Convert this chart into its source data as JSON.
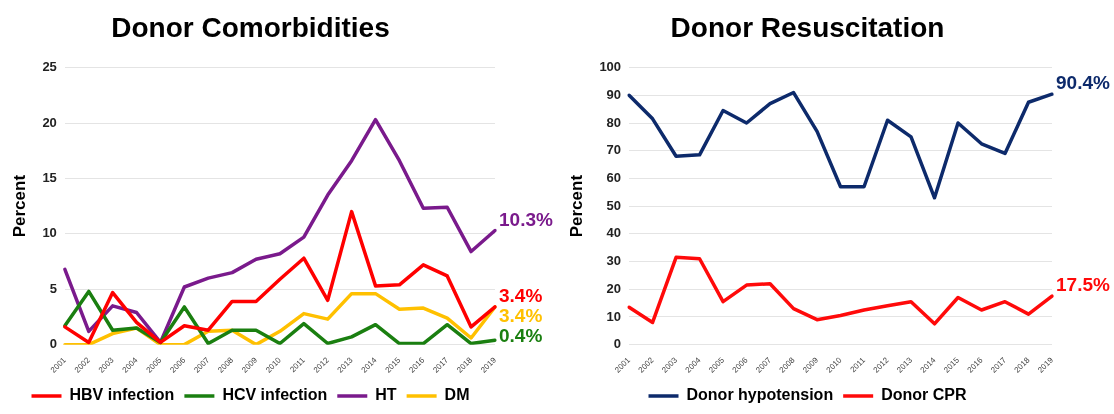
{
  "chart_data": [
    {
      "type": "line",
      "title": "Donor Comorbidities",
      "ylabel": "Percent",
      "categories": [
        "2001",
        "2002",
        "2003",
        "2004",
        "2005",
        "2006",
        "2007",
        "2008",
        "2009",
        "2010",
        "2011",
        "2012",
        "2013",
        "2014",
        "2015",
        "2016",
        "2017",
        "2018",
        "2019"
      ],
      "series": [
        {
          "name": "HBV infection",
          "color": "#ff0000",
          "values": [
            1.6,
            0.2,
            4.7,
            2.0,
            0.2,
            1.7,
            1.3,
            3.9,
            3.9,
            5.9,
            7.8,
            4.0,
            12.0,
            5.3,
            5.4,
            7.2,
            6.2,
            1.6,
            3.4
          ]
        },
        {
          "name": "HCV infection",
          "color": "#1a7f10",
          "values": [
            1.7,
            4.8,
            1.3,
            1.5,
            0.2,
            3.4,
            0.1,
            1.3,
            1.3,
            0.1,
            1.9,
            0.1,
            0.7,
            1.8,
            0.1,
            0.1,
            1.8,
            0.1,
            0.4
          ]
        },
        {
          "name": "HT",
          "color": "#7a1a8c",
          "values": [
            6.8,
            1.2,
            3.5,
            2.9,
            0.2,
            5.2,
            6.0,
            6.5,
            7.7,
            8.2,
            9.7,
            13.5,
            16.6,
            20.3,
            16.6,
            12.3,
            12.4,
            8.4,
            10.3
          ]
        },
        {
          "name": "DM",
          "color": "#ffc000",
          "values": [
            0,
            0,
            1.0,
            1.5,
            0,
            0,
            1.2,
            1.3,
            0,
            1.2,
            2.8,
            2.3,
            4.6,
            4.6,
            3.2,
            3.3,
            2.4,
            0.6,
            3.4
          ]
        }
      ],
      "ylim": [
        0,
        25
      ],
      "yticks": [
        0,
        5,
        10,
        15,
        20,
        25
      ],
      "grid": "y",
      "legend": "bottom",
      "marker": "none",
      "line_style": "solid",
      "annotations": [
        {
          "text": "10.3%",
          "x": "2019",
          "y": 10.3
        },
        {
          "text": "3.4%",
          "x": "2019",
          "y": 3.4
        },
        {
          "text": "3.4%",
          "x": "2019",
          "y": 3.4
        },
        {
          "text": "0.4%",
          "x": "2019",
          "y": 0.4
        }
      ]
    },
    {
      "type": "line",
      "title": "Donor Resuscitation",
      "ylabel": "Percent",
      "categories": [
        "2001",
        "2002",
        "2003",
        "2004",
        "2005",
        "2006",
        "2007",
        "2008",
        "2009",
        "2010",
        "2011",
        "2012",
        "2013",
        "2014",
        "2015",
        "2016",
        "2017",
        "2018",
        "2019"
      ],
      "series": [
        {
          "name": "Donor hypotension",
          "color": "#0d2a6b",
          "values": [
            90,
            81.5,
            68,
            68.5,
            84.5,
            80,
            87,
            91,
            77,
            57,
            57,
            81,
            75,
            53,
            80,
            72.5,
            69,
            87.5,
            90.4
          ]
        },
        {
          "name": "Donor CPR",
          "color": "#ff0a0a",
          "values": [
            13.5,
            8,
            31.5,
            31,
            15.5,
            21.5,
            22,
            13,
            9,
            10.5,
            12.5,
            14,
            15.5,
            7.5,
            17,
            12.5,
            15.5,
            11,
            17.5
          ]
        }
      ],
      "ylim": [
        0,
        100
      ],
      "yticks": [
        0,
        10,
        20,
        30,
        40,
        50,
        60,
        70,
        80,
        90,
        100
      ],
      "grid": "y",
      "legend": "bottom",
      "marker": "none",
      "line_style": "solid",
      "annotations": [
        {
          "text": "90.4%",
          "x": "2019",
          "y": 90.4
        },
        {
          "text": "17.5%",
          "x": "2019",
          "y": 17.5
        }
      ]
    }
  ]
}
